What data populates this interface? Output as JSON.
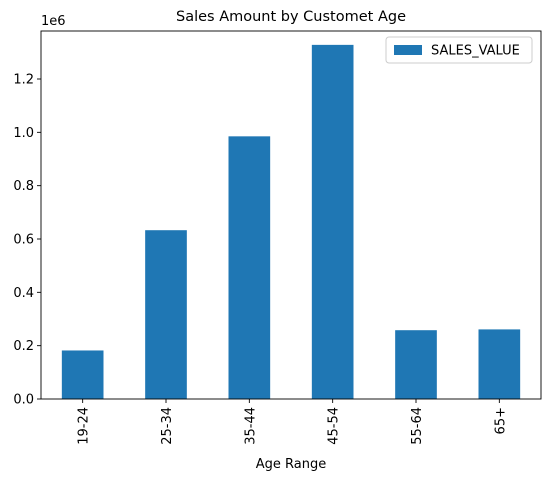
{
  "chart_data": {
    "type": "bar",
    "title": "Sales Amount by Customet Age",
    "xlabel": "Age Range",
    "ylabel": "",
    "y_scale_label": "1e6",
    "categories": [
      "19-24",
      "25-34",
      "35-44",
      "45-54",
      "55-64",
      "65+"
    ],
    "series": [
      {
        "name": "SALES_VALUE",
        "color": "#1f77b4",
        "values": [
          182000,
          633000,
          985000,
          1328000,
          258000,
          261000
        ]
      }
    ],
    "ylim": [
      0,
      1380000
    ],
    "yticks": [
      0,
      200000,
      400000,
      600000,
      800000,
      1000000,
      1200000
    ],
    "ytick_labels": [
      "0.0",
      "0.2",
      "0.4",
      "0.6",
      "0.8",
      "1.0",
      "1.2"
    ],
    "legend_position": "top-right",
    "grid": false
  }
}
